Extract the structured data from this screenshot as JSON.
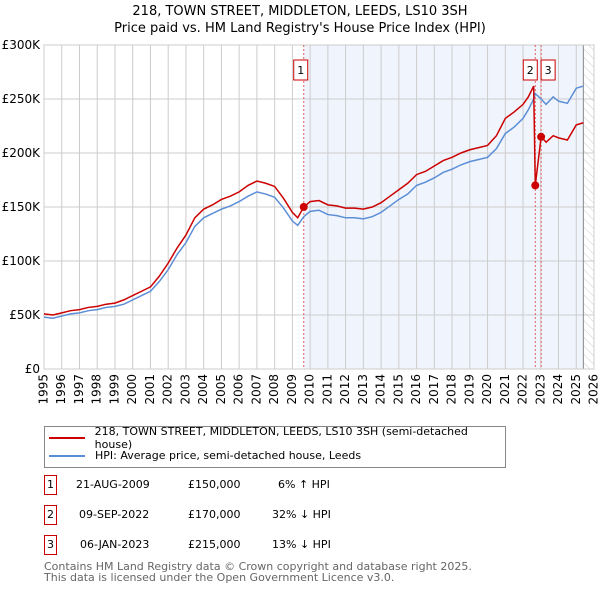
{
  "title": "218, TOWN STREET, MIDDLETON, LEEDS, LS10 3SH",
  "subtitle": "Price paid vs. HM Land Registry's House Price Index (HPI)",
  "chart_data": {
    "type": "line",
    "ylim": [
      0,
      300000
    ],
    "xlim": [
      1995,
      2026
    ],
    "yticks": [
      0,
      50000,
      100000,
      150000,
      200000,
      250000,
      300000
    ],
    "ytick_labels": [
      "£0",
      "£50K",
      "£100K",
      "£150K",
      "£200K",
      "£250K",
      "£300K"
    ],
    "xticks": [
      1995,
      1996,
      1997,
      1998,
      1999,
      2000,
      2001,
      2002,
      2003,
      2004,
      2005,
      2006,
      2007,
      2008,
      2009,
      2010,
      2011,
      2012,
      2013,
      2014,
      2015,
      2016,
      2017,
      2018,
      2019,
      2020,
      2021,
      2022,
      2023,
      2024,
      2025,
      2026
    ],
    "grid": true,
    "shaded_from": 2009.64,
    "hatched_from": 2025.4,
    "series": [
      {
        "name": "218, TOWN STREET, MIDDLETON, LEEDS, LS10 3SH (semi-detached house)",
        "color": "#cc0000",
        "x": [
          1995,
          1995.5,
          1996,
          1996.5,
          1997,
          1997.5,
          1998,
          1998.5,
          1999,
          1999.5,
          2000,
          2000.5,
          2001,
          2001.5,
          2002,
          2002.5,
          2003,
          2003.5,
          2004,
          2004.5,
          2005,
          2005.5,
          2006,
          2006.5,
          2007,
          2007.5,
          2008,
          2008.5,
          2009,
          2009.3,
          2009.64,
          2010,
          2010.5,
          2011,
          2011.5,
          2012,
          2012.5,
          2013,
          2013.5,
          2014,
          2014.5,
          2015,
          2015.5,
          2016,
          2016.5,
          2017,
          2017.5,
          2018,
          2018.5,
          2019,
          2019.5,
          2020,
          2020.5,
          2021,
          2021.5,
          2022,
          2022.3,
          2022.6,
          2022.69,
          2023.02,
          2023.3,
          2023.7,
          2024,
          2024.5,
          2025,
          2025.4
        ],
        "y": [
          51000,
          50000,
          52000,
          54000,
          55000,
          57000,
          58000,
          60000,
          61000,
          64000,
          68000,
          72000,
          76000,
          86000,
          98000,
          112000,
          124000,
          140000,
          148000,
          152000,
          157000,
          160000,
          164000,
          170000,
          174000,
          172000,
          169000,
          158000,
          145000,
          140000,
          150000,
          155000,
          156000,
          152000,
          151000,
          149000,
          149000,
          148000,
          150000,
          154000,
          160000,
          166000,
          172000,
          180000,
          183000,
          188000,
          193000,
          196000,
          200000,
          203000,
          205000,
          207000,
          216000,
          232000,
          238000,
          245000,
          252000,
          262000,
          170000,
          215000,
          210000,
          216000,
          214000,
          212000,
          226000,
          228000
        ]
      },
      {
        "name": "HPI: Average price, semi-detached house, Leeds",
        "color": "#5b8ed6",
        "x": [
          1995,
          1995.5,
          1996,
          1996.5,
          1997,
          1997.5,
          1998,
          1998.5,
          1999,
          1999.5,
          2000,
          2000.5,
          2001,
          2001.5,
          2002,
          2002.5,
          2003,
          2003.5,
          2004,
          2004.5,
          2005,
          2005.5,
          2006,
          2006.5,
          2007,
          2007.5,
          2008,
          2008.5,
          2009,
          2009.3,
          2009.64,
          2010,
          2010.5,
          2011,
          2011.5,
          2012,
          2012.5,
          2013,
          2013.5,
          2014,
          2014.5,
          2015,
          2015.5,
          2016,
          2016.5,
          2017,
          2017.5,
          2018,
          2018.5,
          2019,
          2019.5,
          2020,
          2020.5,
          2021,
          2021.5,
          2022,
          2022.3,
          2022.6,
          2022.69,
          2023.02,
          2023.3,
          2023.7,
          2024,
          2024.5,
          2025,
          2025.4
        ],
        "y": [
          48000,
          47000,
          49000,
          51000,
          52000,
          54000,
          55000,
          57000,
          58000,
          60000,
          64000,
          68000,
          72000,
          81000,
          92000,
          106000,
          117000,
          132000,
          140000,
          144000,
          148000,
          151000,
          155000,
          160000,
          164000,
          162000,
          159000,
          149000,
          137000,
          133000,
          141000,
          146000,
          147000,
          143000,
          142000,
          140000,
          140000,
          139000,
          141000,
          145000,
          151000,
          157000,
          162000,
          170000,
          173000,
          177000,
          182000,
          185000,
          189000,
          192000,
          194000,
          196000,
          204000,
          218000,
          224000,
          232000,
          240000,
          250000,
          255000,
          250000,
          245000,
          252000,
          248000,
          246000,
          260000,
          262000
        ]
      }
    ],
    "sales": [
      {
        "label": "1",
        "x": 2009.64,
        "y": 150000
      },
      {
        "label": "2",
        "x": 2022.69,
        "y": 170000
      },
      {
        "label": "3",
        "x": 2023.02,
        "y": 215000
      }
    ]
  },
  "legend": {
    "red": "218, TOWN STREET, MIDDLETON, LEEDS, LS10 3SH (semi-detached house)",
    "blue": "HPI: Average price, semi-detached house, Leeds"
  },
  "sales_table": [
    {
      "n": "1",
      "date": "21-AUG-2009",
      "price": "£150,000",
      "hpi": "6% ↑ HPI"
    },
    {
      "n": "2",
      "date": "09-SEP-2022",
      "price": "£170,000",
      "hpi": "32% ↓ HPI"
    },
    {
      "n": "3",
      "date": "06-JAN-2023",
      "price": "£215,000",
      "hpi": "13% ↓ HPI"
    }
  ],
  "footer": [
    "Contains HM Land Registry data © Crown copyright and database right 2025.",
    "This data is licensed under the Open Government Licence v3.0."
  ]
}
